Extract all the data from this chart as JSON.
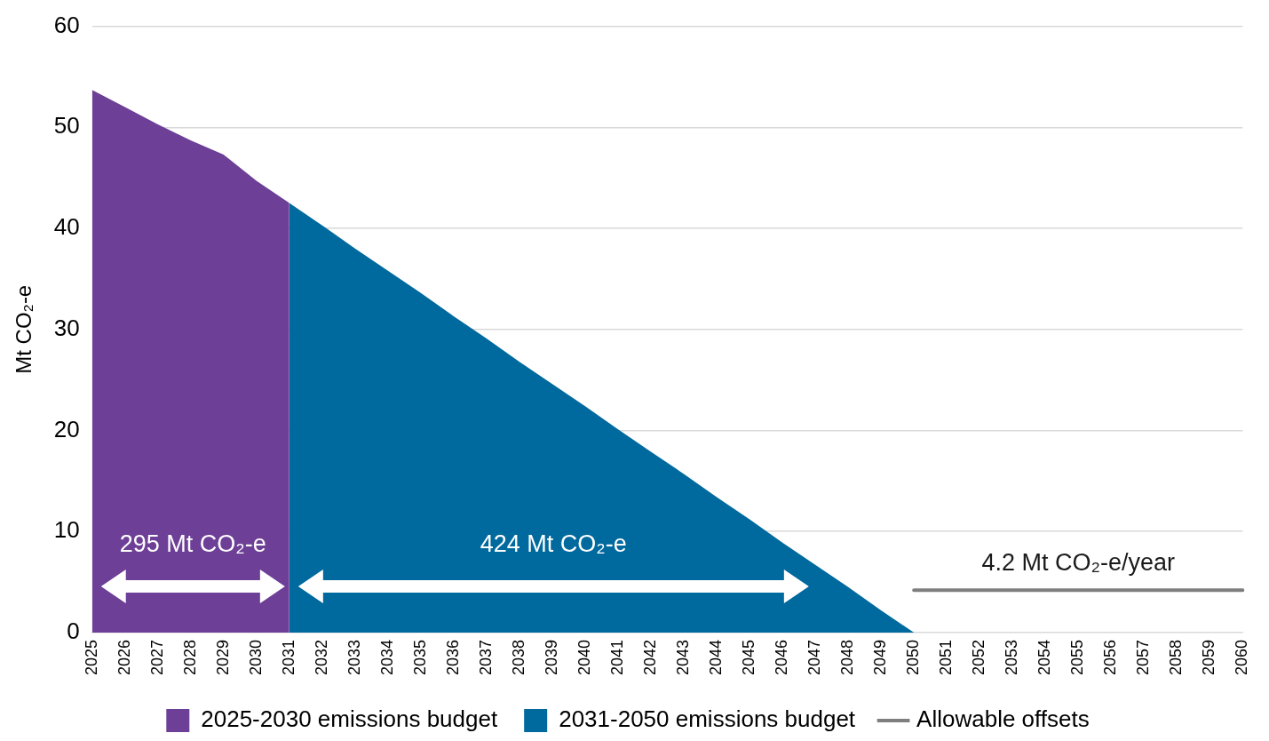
{
  "chart_data": {
    "type": "area",
    "ylabel": "Mt CO₂-e",
    "categories": [
      "2025",
      "2026",
      "2027",
      "2028",
      "2029",
      "2030",
      "2031",
      "2032",
      "2033",
      "2034",
      "2035",
      "2036",
      "2037",
      "2038",
      "2039",
      "2040",
      "2041",
      "2042",
      "2043",
      "2044",
      "2045",
      "2046",
      "2047",
      "2048",
      "2049",
      "2050",
      "2051",
      "2052",
      "2053",
      "2054",
      "2055",
      "2056",
      "2057",
      "2058",
      "2059",
      "2060"
    ],
    "series": [
      {
        "name": "2025-2030 emissions budget",
        "color": "#6d3f96",
        "values": [
          53.7,
          52.0,
          50.3,
          48.7,
          47.3,
          44.7,
          42.5,
          null,
          null,
          null,
          null,
          null,
          null,
          null,
          null,
          null,
          null,
          null,
          null,
          null,
          null,
          null,
          null,
          null,
          null,
          null,
          null,
          null,
          null,
          null,
          null,
          null,
          null,
          null,
          null,
          null
        ]
      },
      {
        "name": "2031-2050 emissions budget",
        "color": "#00699d",
        "values": [
          null,
          null,
          null,
          null,
          null,
          null,
          42.5,
          40.3,
          38.0,
          35.8,
          33.6,
          31.3,
          29.1,
          26.8,
          24.6,
          22.4,
          20.1,
          17.9,
          15.7,
          13.4,
          11.2,
          8.9,
          6.7,
          4.5,
          2.2,
          0,
          null,
          null,
          null,
          null,
          null,
          null,
          null,
          null,
          null,
          null
        ]
      },
      {
        "name": "Allowable offsets",
        "type": "line",
        "color": "#7f7f7f",
        "values": [
          null,
          null,
          null,
          null,
          null,
          null,
          null,
          null,
          null,
          null,
          null,
          null,
          null,
          null,
          null,
          null,
          null,
          null,
          null,
          null,
          null,
          null,
          null,
          null,
          null,
          4.2,
          4.2,
          4.2,
          4.2,
          4.2,
          4.2,
          4.2,
          4.2,
          4.2,
          4.2,
          4.2
        ]
      }
    ],
    "ylim": [
      0,
      60
    ],
    "yticks": [
      0,
      10,
      20,
      30,
      40,
      50,
      60
    ],
    "grid": "y",
    "legend": "bottom",
    "marker": "none",
    "annotations": [
      "295 Mt CO₂-e",
      "424 Mt CO₂-e",
      "4.2 Mt CO₂-e/year"
    ]
  }
}
